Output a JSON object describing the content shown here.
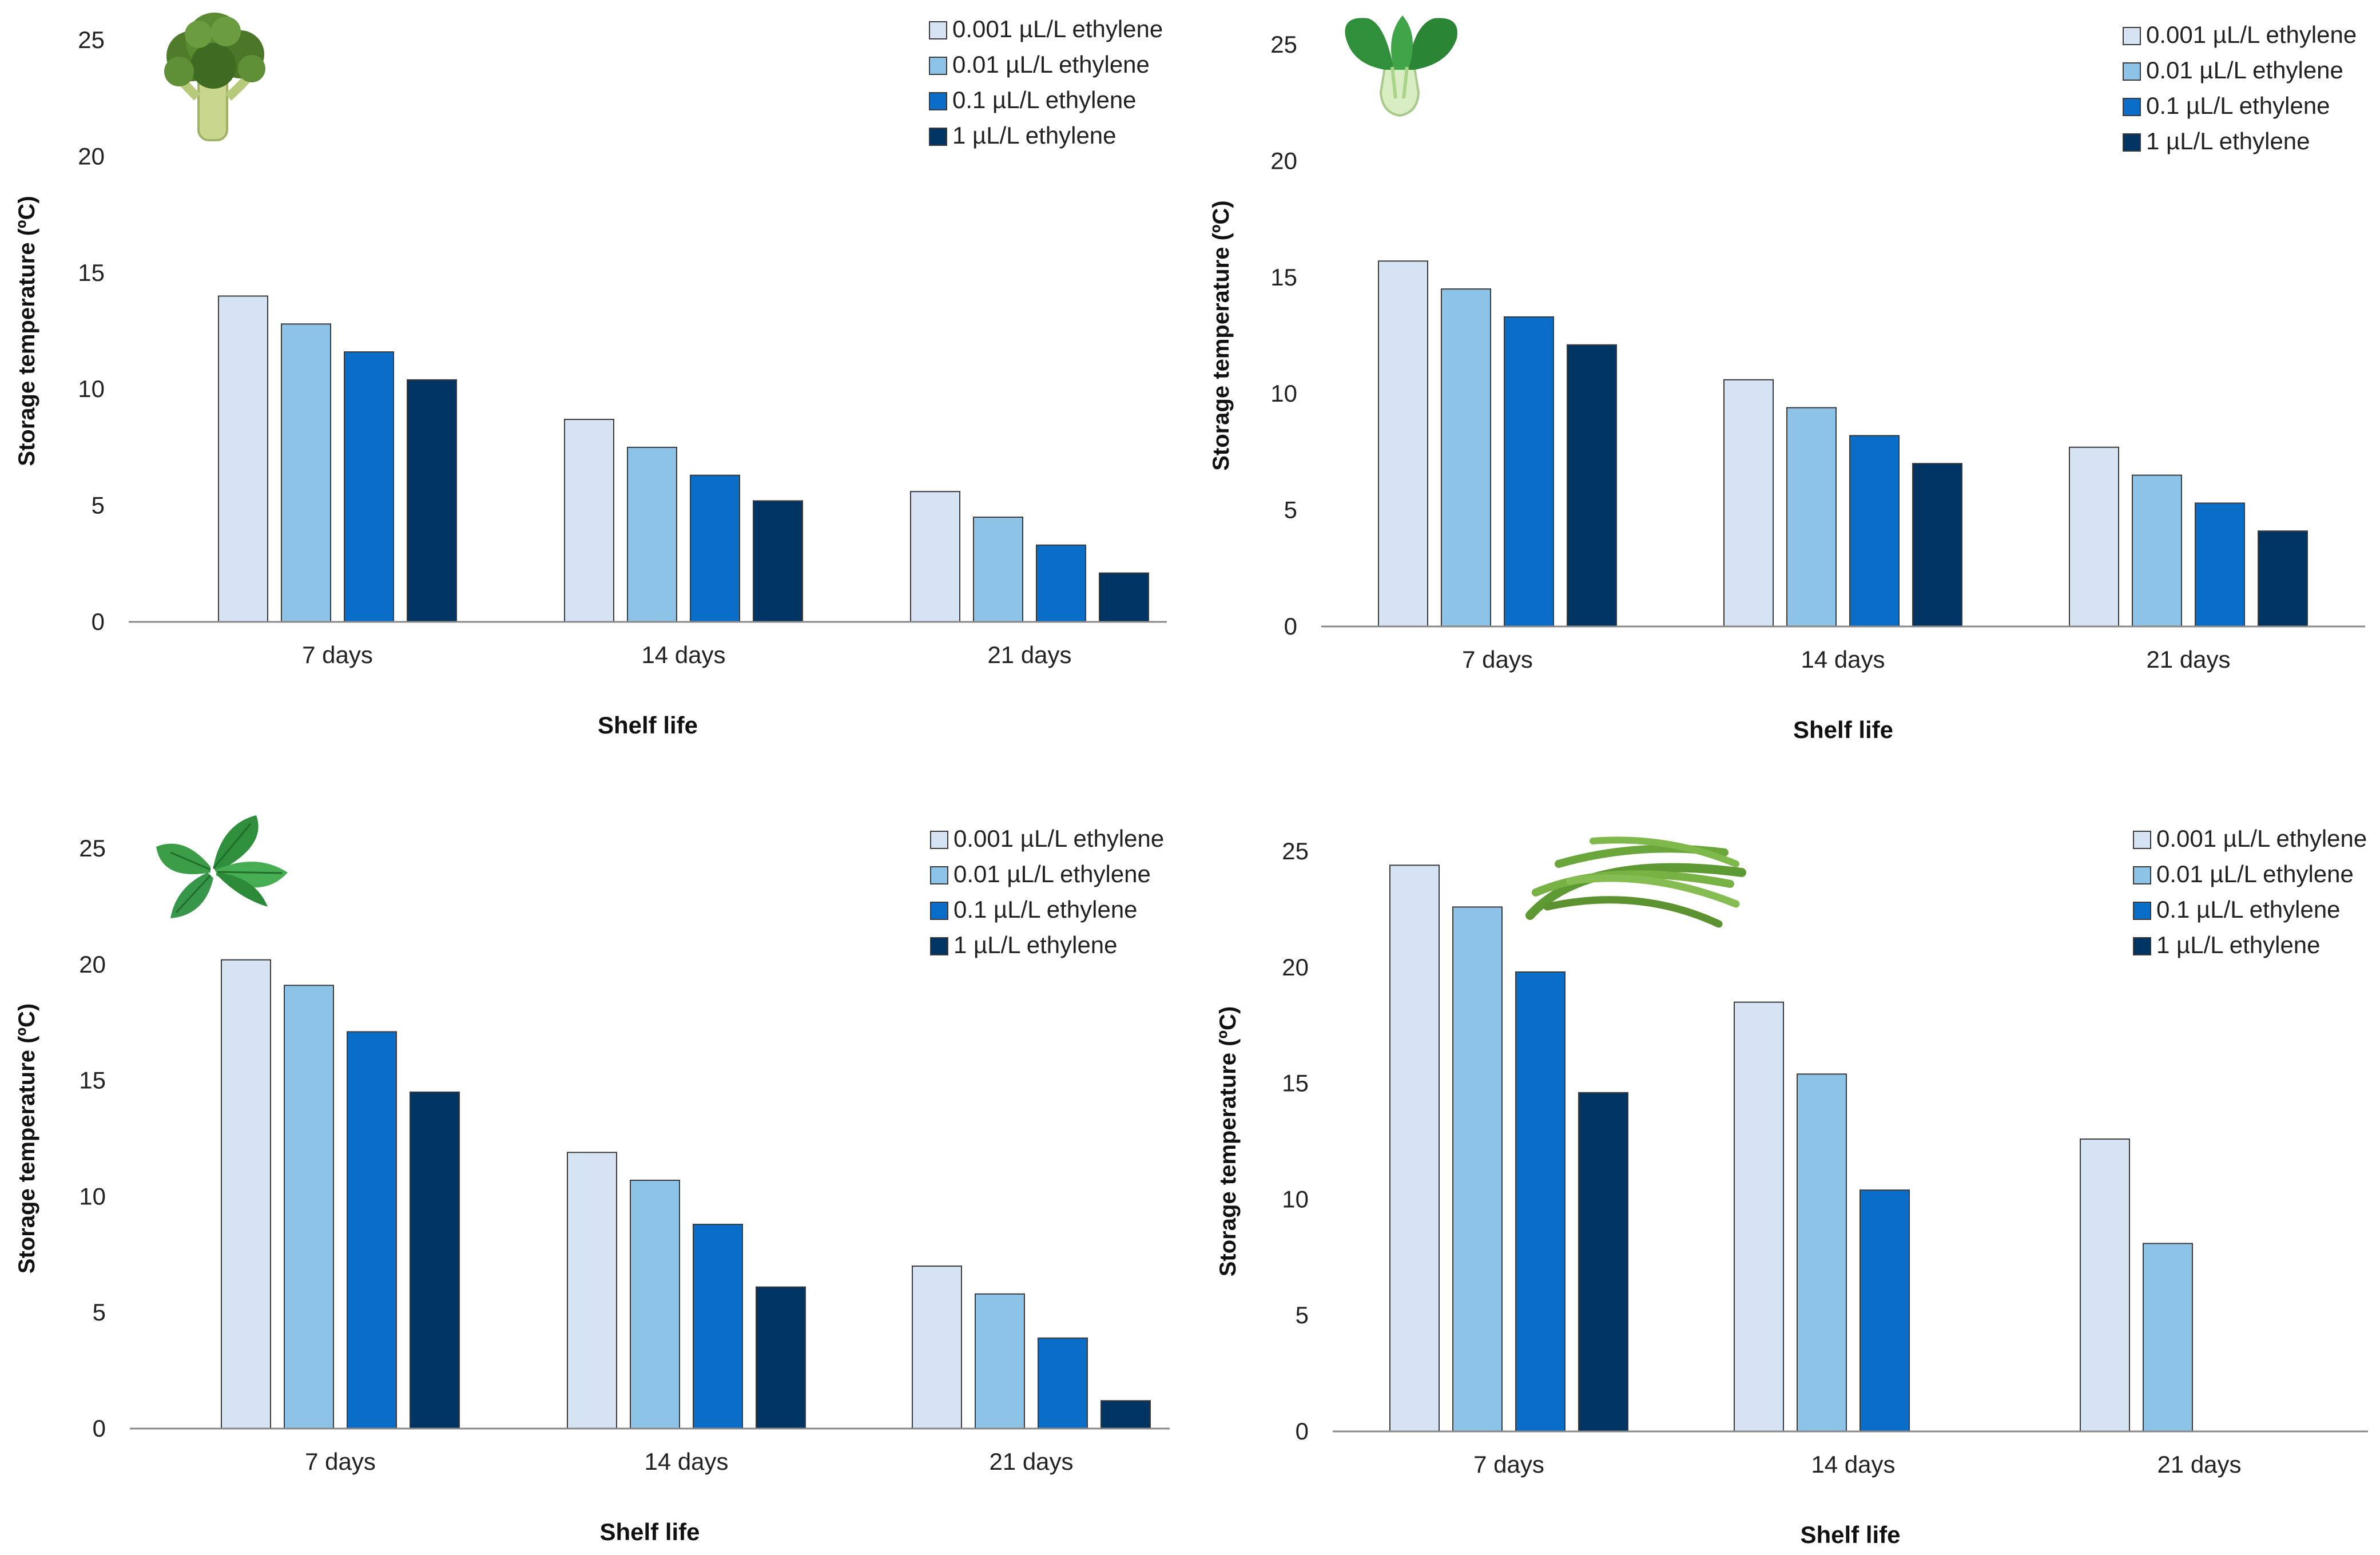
{
  "figure": {
    "legend_labels": [
      "0.001 µL/L ethylene",
      "0.01 µL/L ethylene",
      "0.1 µL/L ethylene",
      "1 µL/L ethylene"
    ],
    "series_colors": [
      "#d6e3f4",
      "#8ec3e8",
      "#0a6ec8",
      "#003463"
    ]
  },
  "chart_data": [
    {
      "type": "bar",
      "icon": "broccoli-icon",
      "categories": [
        "7 days",
        "14 days",
        "21 days"
      ],
      "series": [
        {
          "name": "0.001 µL/L ethylene",
          "values": [
            14.0,
            8.7,
            5.6
          ]
        },
        {
          "name": "0.01 µL/L ethylene",
          "values": [
            12.8,
            7.5,
            4.5
          ]
        },
        {
          "name": "0.1 µL/L ethylene",
          "values": [
            11.6,
            6.3,
            3.3
          ]
        },
        {
          "name": "1 µL/L ethylene",
          "values": [
            10.4,
            5.2,
            2.1
          ]
        }
      ],
      "title": "",
      "xlabel": "Shelf life",
      "ylabel": "Storage temperature (ºC)",
      "ylim": [
        0,
        25
      ],
      "yticks": [
        0,
        5,
        10,
        15,
        20,
        25
      ],
      "grid": false,
      "legend": "top-right"
    },
    {
      "type": "bar",
      "icon": "bok-choy-icon",
      "categories": [
        "7 days",
        "14 days",
        "21 days"
      ],
      "series": [
        {
          "name": "0.001 µL/L ethylene",
          "values": [
            15.7,
            10.6,
            7.7
          ]
        },
        {
          "name": "0.01 µL/L ethylene",
          "values": [
            14.5,
            9.4,
            6.5
          ]
        },
        {
          "name": "0.1 µL/L ethylene",
          "values": [
            13.3,
            8.2,
            5.3
          ]
        },
        {
          "name": "1 µL/L ethylene",
          "values": [
            12.1,
            7.0,
            4.1
          ]
        }
      ],
      "title": "",
      "xlabel": "Shelf life",
      "ylabel": "Storage temperature (ºC)",
      "ylim": [
        0,
        25
      ],
      "yticks": [
        0,
        5,
        10,
        15,
        20,
        25
      ],
      "grid": false,
      "legend": "top-right"
    },
    {
      "type": "bar",
      "icon": "mint-leaves-icon",
      "categories": [
        "7 days",
        "14 days",
        "21 days"
      ],
      "series": [
        {
          "name": "0.001 µL/L ethylene",
          "values": [
            20.2,
            11.9,
            7.0
          ]
        },
        {
          "name": "0.01 µL/L ethylene",
          "values": [
            19.1,
            10.7,
            5.8
          ]
        },
        {
          "name": "0.1 µL/L ethylene",
          "values": [
            17.1,
            8.8,
            3.9
          ]
        },
        {
          "name": "1 µL/L ethylene",
          "values": [
            14.5,
            6.1,
            1.2
          ]
        }
      ],
      "title": "",
      "xlabel": "Shelf life",
      "ylabel": "Storage temperature (ºC)",
      "ylim": [
        0,
        25
      ],
      "yticks": [
        0,
        5,
        10,
        15,
        20,
        25
      ],
      "grid": false,
      "legend": "top-right"
    },
    {
      "type": "bar",
      "icon": "green-beans-icon",
      "categories": [
        "7 days",
        "14 days",
        "21 days"
      ],
      "series": [
        {
          "name": "0.001 µL/L ethylene",
          "values": [
            24.4,
            18.5,
            12.6
          ]
        },
        {
          "name": "0.01 µL/L ethylene",
          "values": [
            22.6,
            15.4,
            8.1
          ]
        },
        {
          "name": "0.1 µL/L ethylene",
          "values": [
            19.8,
            10.4,
            null
          ]
        },
        {
          "name": "1 µL/L ethylene",
          "values": [
            14.6,
            null,
            null
          ]
        }
      ],
      "title": "",
      "xlabel": "Shelf life",
      "ylabel": "Storage temperature (ºC)",
      "ylim": [
        0,
        25
      ],
      "yticks": [
        0,
        5,
        10,
        15,
        20,
        25
      ],
      "grid": false,
      "legend": "top-right"
    }
  ]
}
